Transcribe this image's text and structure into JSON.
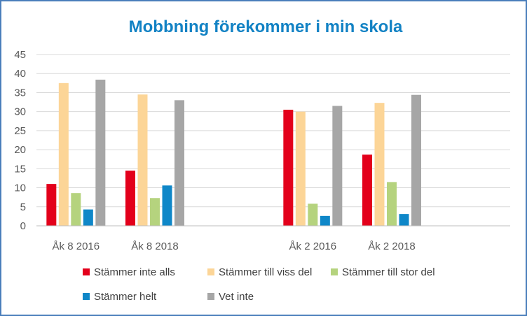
{
  "chart_data": {
    "type": "bar",
    "title": "Mobbning förekommer i min skola",
    "xlabel": "",
    "ylabel": "",
    "ylim": [
      0,
      45
    ],
    "yticks": [
      0,
      5,
      10,
      15,
      20,
      25,
      30,
      35,
      40,
      45
    ],
    "grid": true,
    "legend_position": "bottom",
    "categories": [
      "Åk 8 2016",
      "Åk 8 2018",
      "",
      "Åk 2 2016",
      "Åk 2 2018",
      ""
    ],
    "series": [
      {
        "name": "Stämmer inte alls",
        "color": "#e3001b",
        "values": [
          11,
          14.5,
          null,
          30.5,
          18.7,
          null
        ]
      },
      {
        "name": "Stämmer till viss del",
        "color": "#fcd597",
        "values": [
          37.5,
          34.5,
          null,
          30,
          32.3,
          null
        ]
      },
      {
        "name": "Stämmer till stor del",
        "color": "#b5d37e",
        "values": [
          8.6,
          7.3,
          null,
          5.8,
          11.5,
          null
        ]
      },
      {
        "name": "Stämmer helt",
        "color": "#0f87c8",
        "values": [
          4.3,
          10.6,
          null,
          2.6,
          3.1,
          null
        ]
      },
      {
        "name": "Vet inte",
        "color": "#a6a6a6",
        "values": [
          38.4,
          33,
          null,
          31.5,
          34.4,
          null
        ]
      }
    ],
    "title_color": "#1282c4"
  }
}
